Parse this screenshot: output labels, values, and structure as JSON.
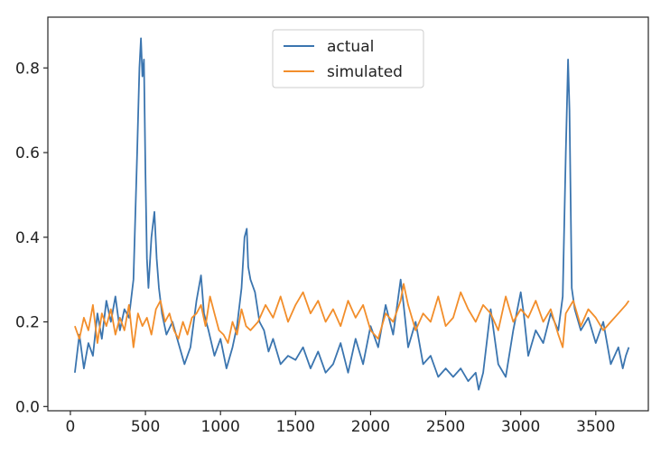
{
  "chart_data": {
    "type": "line",
    "title": "",
    "xlabel": "",
    "ylabel": "",
    "xlim": [
      -150,
      3850
    ],
    "ylim": [
      -0.01,
      0.92
    ],
    "xticks": [
      0,
      500,
      1000,
      1500,
      2000,
      2500,
      3000,
      3500
    ],
    "xtick_labels": [
      "0",
      "500",
      "1000",
      "1500",
      "2000",
      "2500",
      "3000",
      "3500"
    ],
    "yticks": [
      0.0,
      0.2,
      0.4,
      0.6,
      0.8
    ],
    "ytick_labels": [
      "0.0",
      "0.2",
      "0.4",
      "0.6",
      "0.8"
    ],
    "grid": false,
    "legend": "upper center",
    "series": [
      {
        "name": "actual",
        "color": "#3b75af",
        "x": [
          30,
          60,
          90,
          120,
          150,
          180,
          210,
          240,
          270,
          300,
          330,
          360,
          390,
          420,
          445,
          460,
          470,
          480,
          490,
          500,
          510,
          520,
          540,
          560,
          575,
          590,
          610,
          640,
          680,
          720,
          760,
          800,
          840,
          870,
          890,
          920,
          960,
          1000,
          1040,
          1080,
          1110,
          1140,
          1160,
          1175,
          1185,
          1200,
          1230,
          1260,
          1290,
          1320,
          1350,
          1400,
          1450,
          1500,
          1550,
          1600,
          1650,
          1700,
          1750,
          1800,
          1850,
          1900,
          1950,
          2000,
          2050,
          2100,
          2150,
          2200,
          2220,
          2250,
          2300,
          2350,
          2400,
          2450,
          2500,
          2550,
          2600,
          2650,
          2700,
          2720,
          2750,
          2800,
          2850,
          2900,
          2950,
          3000,
          3020,
          3050,
          3100,
          3150,
          3200,
          3250,
          3280,
          3300,
          3315,
          3325,
          3340,
          3360,
          3400,
          3450,
          3500,
          3550,
          3600,
          3650,
          3680,
          3700,
          3720
        ],
        "y": [
          0.08,
          0.17,
          0.09,
          0.15,
          0.12,
          0.22,
          0.16,
          0.25,
          0.2,
          0.26,
          0.18,
          0.23,
          0.21,
          0.3,
          0.6,
          0.8,
          0.87,
          0.78,
          0.82,
          0.55,
          0.35,
          0.28,
          0.4,
          0.46,
          0.35,
          0.28,
          0.22,
          0.17,
          0.2,
          0.15,
          0.1,
          0.14,
          0.25,
          0.31,
          0.22,
          0.18,
          0.12,
          0.16,
          0.09,
          0.14,
          0.19,
          0.28,
          0.4,
          0.42,
          0.33,
          0.3,
          0.27,
          0.2,
          0.18,
          0.13,
          0.16,
          0.1,
          0.12,
          0.11,
          0.14,
          0.09,
          0.13,
          0.08,
          0.1,
          0.15,
          0.08,
          0.16,
          0.1,
          0.19,
          0.14,
          0.24,
          0.17,
          0.3,
          0.24,
          0.14,
          0.2,
          0.1,
          0.12,
          0.07,
          0.09,
          0.07,
          0.09,
          0.06,
          0.08,
          0.04,
          0.08,
          0.23,
          0.1,
          0.07,
          0.18,
          0.27,
          0.22,
          0.12,
          0.18,
          0.15,
          0.22,
          0.18,
          0.26,
          0.6,
          0.82,
          0.7,
          0.28,
          0.23,
          0.18,
          0.21,
          0.15,
          0.2,
          0.1,
          0.14,
          0.09,
          0.12,
          0.14
        ]
      },
      {
        "name": "simulated",
        "color": "#f28e2b",
        "x": [
          30,
          60,
          90,
          120,
          150,
          180,
          210,
          240,
          270,
          300,
          330,
          360,
          390,
          420,
          450,
          480,
          510,
          540,
          570,
          600,
          630,
          660,
          690,
          720,
          750,
          780,
          810,
          840,
          870,
          900,
          930,
          960,
          990,
          1020,
          1050,
          1080,
          1110,
          1140,
          1170,
          1200,
          1250,
          1300,
          1350,
          1400,
          1450,
          1500,
          1550,
          1600,
          1650,
          1700,
          1750,
          1800,
          1850,
          1900,
          1950,
          2000,
          2050,
          2100,
          2150,
          2200,
          2220,
          2250,
          2300,
          2350,
          2400,
          2450,
          2500,
          2550,
          2600,
          2650,
          2700,
          2750,
          2800,
          2850,
          2900,
          2950,
          3000,
          3050,
          3100,
          3150,
          3200,
          3250,
          3280,
          3300,
          3350,
          3400,
          3450,
          3500,
          3550,
          3600,
          3650,
          3700,
          3720
        ],
        "y": [
          0.19,
          0.16,
          0.21,
          0.18,
          0.24,
          0.15,
          0.22,
          0.19,
          0.23,
          0.17,
          0.21,
          0.18,
          0.24,
          0.14,
          0.22,
          0.19,
          0.21,
          0.17,
          0.23,
          0.25,
          0.2,
          0.22,
          0.18,
          0.16,
          0.2,
          0.17,
          0.21,
          0.22,
          0.24,
          0.19,
          0.26,
          0.22,
          0.18,
          0.17,
          0.15,
          0.2,
          0.17,
          0.23,
          0.19,
          0.18,
          0.2,
          0.24,
          0.21,
          0.26,
          0.2,
          0.24,
          0.27,
          0.22,
          0.25,
          0.2,
          0.23,
          0.19,
          0.25,
          0.21,
          0.24,
          0.18,
          0.16,
          0.22,
          0.2,
          0.25,
          0.29,
          0.24,
          0.18,
          0.22,
          0.2,
          0.26,
          0.19,
          0.21,
          0.27,
          0.23,
          0.2,
          0.24,
          0.22,
          0.18,
          0.26,
          0.2,
          0.23,
          0.21,
          0.25,
          0.2,
          0.23,
          0.17,
          0.14,
          0.22,
          0.25,
          0.19,
          0.23,
          0.21,
          0.18,
          0.2,
          0.22,
          0.24,
          0.25
        ]
      }
    ]
  }
}
